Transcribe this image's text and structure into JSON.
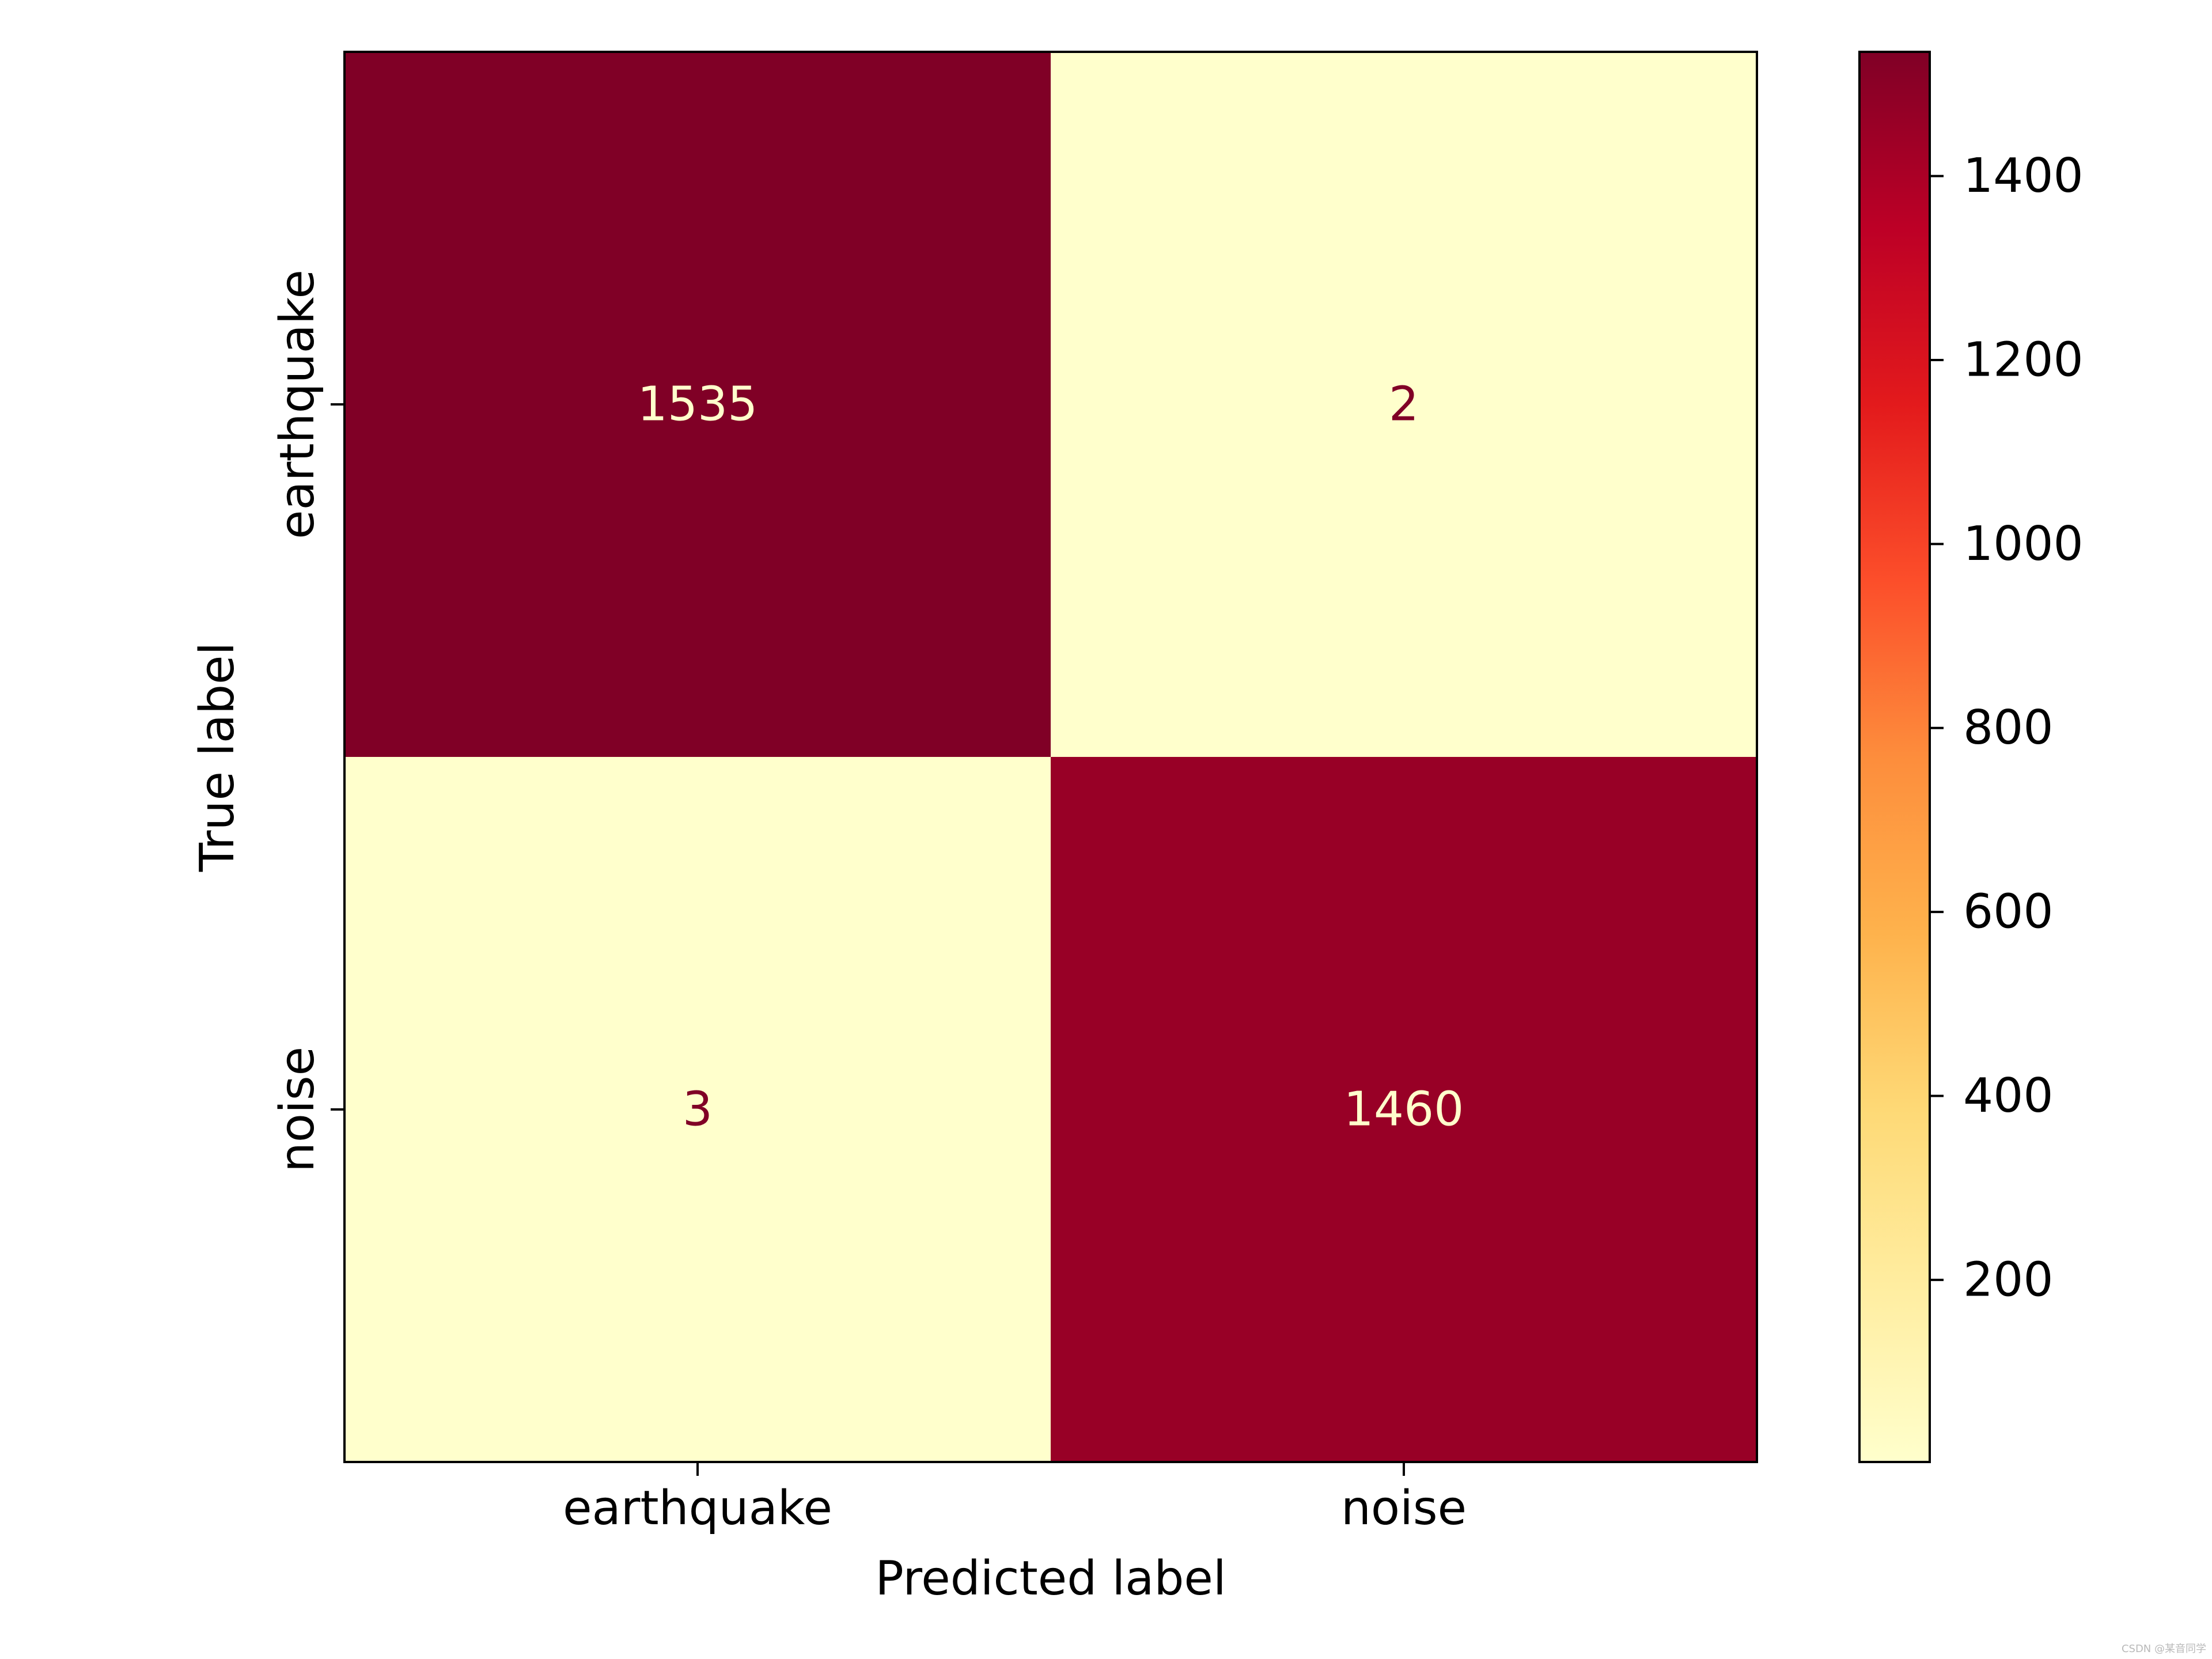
{
  "chart_data": {
    "type": "heatmap",
    "subtype": "confusion-matrix",
    "rows": [
      "earthquake",
      "noise"
    ],
    "columns": [
      "earthquake",
      "noise"
    ],
    "values": [
      [
        1535,
        2
      ],
      [
        3,
        1460
      ]
    ],
    "xlabel": "Predicted label",
    "ylabel": "True label",
    "colormap": "YlOrRd",
    "colorbar": {
      "range": [
        2,
        1535
      ],
      "ticks": [
        200,
        400,
        600,
        800,
        1000,
        1200,
        1400
      ],
      "position": "right"
    },
    "grid": false,
    "colors": {
      "low": "#ffffcc",
      "high": "#800026",
      "text_on_dark": "#ffffcc",
      "text_on_light": "#800026"
    }
  },
  "watermark": "CSDN @某音同学"
}
